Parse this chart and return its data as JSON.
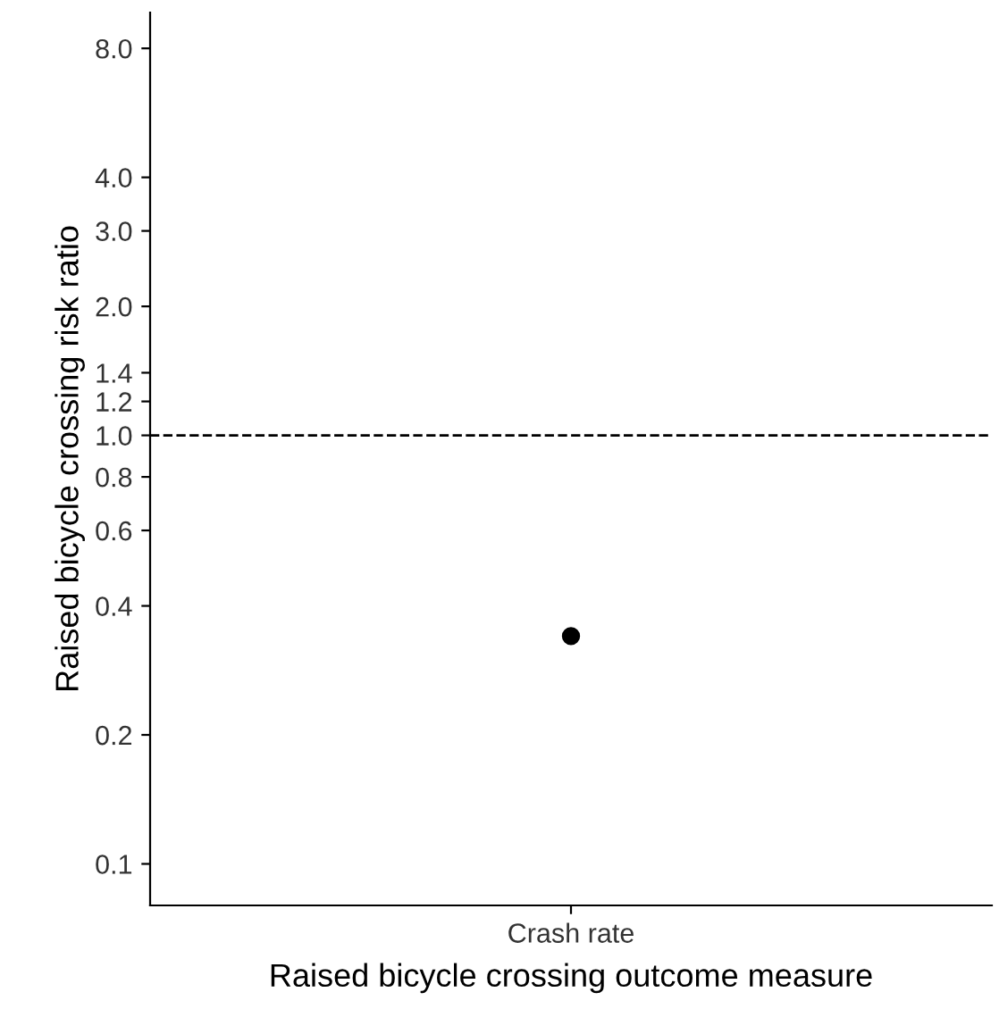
{
  "chart_data": {
    "type": "scatter",
    "xlabel": "Raised bicycle crossing outcome measure",
    "ylabel": "Raised bicycle crossing risk ratio",
    "categories": [
      "Crash rate"
    ],
    "series": [
      {
        "color": "#000000",
        "values": [
          0.34
        ]
      }
    ],
    "log": "y",
    "ylim": [
      0.08,
      9.7
    ],
    "yticks": [
      {
        "value": 0.1,
        "label": "0.1"
      },
      {
        "value": 0.2,
        "label": "0.2"
      },
      {
        "value": 0.4,
        "label": "0.4"
      },
      {
        "value": 0.6,
        "label": "0.6"
      },
      {
        "value": 0.8,
        "label": "0.8"
      },
      {
        "value": 1.0,
        "label": "1.0"
      },
      {
        "value": 1.2,
        "label": "1.2"
      },
      {
        "value": 1.4,
        "label": "1.4"
      },
      {
        "value": 2.0,
        "label": "2.0"
      },
      {
        "value": 3.0,
        "label": "3.0"
      },
      {
        "value": 4.0,
        "label": "4.0"
      },
      {
        "value": 8.0,
        "label": "8.0"
      }
    ],
    "ref_lines": [
      {
        "axis": "y",
        "value": 1.0,
        "line_style": "dashed",
        "color": "#000000"
      }
    ],
    "marker": "circle",
    "grid": false,
    "legend": false
  }
}
